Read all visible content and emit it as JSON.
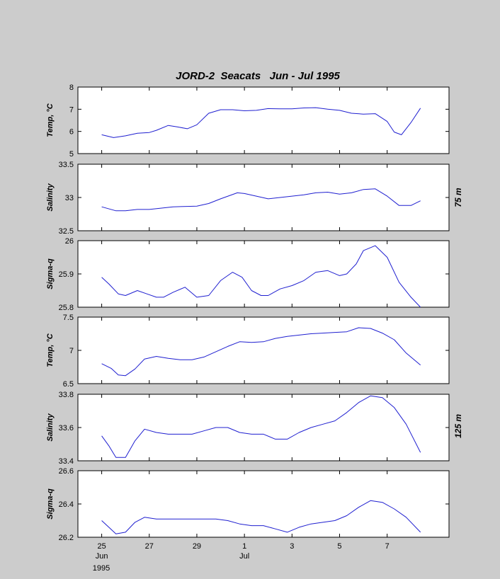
{
  "chart_data": {
    "type": "line",
    "title": "JORD-2  Seacats   Jun - Jul 1995",
    "x_ticks": [
      {
        "x": 25,
        "label": "25",
        "sub": "Jun"
      },
      {
        "x": 27,
        "label": "27",
        "sub": ""
      },
      {
        "x": 29,
        "label": "29",
        "sub": ""
      },
      {
        "x": 31,
        "label": "1",
        "sub": "Jul"
      },
      {
        "x": 33,
        "label": "3",
        "sub": ""
      },
      {
        "x": 35,
        "label": "5",
        "sub": ""
      },
      {
        "x": 37,
        "label": "7",
        "sub": ""
      }
    ],
    "xlim": [
      24,
      39.6
    ],
    "year_label": "1995",
    "depth_labels": [
      "75 m",
      "125 m"
    ],
    "line_color": "#1f1fd0",
    "panels": [
      {
        "ylabel": "Temp, °C",
        "ylim": [
          5,
          8
        ],
        "yticks": [
          "5",
          "6",
          "7",
          "8"
        ],
        "ytick_values": [
          5,
          6,
          7,
          8
        ],
        "x": [
          25.0,
          25.5,
          26.0,
          26.5,
          27.0,
          27.3,
          27.8,
          28.2,
          28.6,
          29.0,
          29.5,
          30.0,
          30.5,
          31.0,
          31.5,
          32.0,
          32.5,
          33.0,
          33.5,
          34.0,
          34.5,
          35.0,
          35.5,
          36.0,
          36.5,
          37.0,
          37.3,
          37.6,
          38.0,
          38.4
        ],
        "y": [
          5.85,
          5.72,
          5.8,
          5.92,
          5.95,
          6.05,
          6.27,
          6.2,
          6.12,
          6.3,
          6.82,
          6.98,
          6.98,
          6.93,
          6.95,
          7.03,
          7.02,
          7.02,
          7.06,
          7.07,
          7.0,
          6.95,
          6.82,
          6.78,
          6.8,
          6.45,
          5.97,
          5.85,
          6.4,
          7.05
        ]
      },
      {
        "ylabel": "Salinity",
        "ylim": [
          32.5,
          33.5
        ],
        "yticks": [
          "32.5",
          "33",
          "33.5"
        ],
        "ytick_values": [
          32.5,
          33,
          33.5
        ],
        "x": [
          25.0,
          25.6,
          26.0,
          26.5,
          27.0,
          28.0,
          29.0,
          29.5,
          30.0,
          30.7,
          31.0,
          31.5,
          32.0,
          32.5,
          33.0,
          33.5,
          34.0,
          34.5,
          35.0,
          35.5,
          36.0,
          36.5,
          37.0,
          37.5,
          38.0,
          38.4
        ],
        "y": [
          32.86,
          32.8,
          32.8,
          32.82,
          32.82,
          32.86,
          32.87,
          32.91,
          32.98,
          33.07,
          33.06,
          33.02,
          32.98,
          33.0,
          33.02,
          33.04,
          33.07,
          33.08,
          33.05,
          33.07,
          33.12,
          33.13,
          33.02,
          32.88,
          32.88,
          32.95
        ]
      },
      {
        "ylabel": "Sigma-q",
        "ylim": [
          25.8,
          26.0
        ],
        "yticks": [
          "25.8",
          "25.9",
          "26"
        ],
        "ytick_values": [
          25.8,
          25.9,
          26.0
        ],
        "x": [
          25.0,
          25.3,
          25.7,
          26.0,
          26.5,
          26.9,
          27.3,
          27.6,
          28.0,
          28.5,
          29.0,
          29.5,
          30.0,
          30.5,
          30.9,
          31.3,
          31.7,
          32.0,
          32.5,
          33.0,
          33.5,
          34.0,
          34.5,
          35.0,
          35.3,
          35.7,
          36.0,
          36.5,
          37.0,
          37.5,
          38.0,
          38.4
        ],
        "y": [
          25.89,
          25.87,
          25.84,
          25.835,
          25.85,
          25.84,
          25.83,
          25.83,
          25.845,
          25.86,
          25.83,
          25.835,
          25.88,
          25.905,
          25.89,
          25.85,
          25.835,
          25.835,
          25.855,
          25.865,
          25.88,
          25.905,
          25.91,
          25.895,
          25.9,
          25.93,
          25.97,
          25.985,
          25.95,
          25.875,
          25.83,
          25.8
        ]
      },
      {
        "ylabel": "Temp, °C",
        "ylim": [
          6.5,
          7.5
        ],
        "yticks": [
          "6.5",
          "7",
          "7.5"
        ],
        "ytick_values": [
          6.5,
          7,
          7.5
        ],
        "x": [
          25.0,
          25.4,
          25.7,
          26.0,
          26.4,
          26.8,
          27.3,
          27.8,
          28.3,
          28.8,
          29.3,
          29.8,
          30.3,
          30.8,
          31.3,
          31.8,
          32.3,
          32.8,
          33.3,
          33.8,
          34.3,
          34.8,
          35.3,
          35.8,
          36.3,
          36.8,
          37.3,
          37.8,
          38.4
        ],
        "y": [
          6.8,
          6.73,
          6.63,
          6.62,
          6.72,
          6.87,
          6.91,
          6.88,
          6.86,
          6.86,
          6.9,
          6.98,
          7.06,
          7.13,
          7.12,
          7.13,
          7.18,
          7.21,
          7.23,
          7.25,
          7.26,
          7.27,
          7.28,
          7.34,
          7.33,
          7.26,
          7.16,
          6.96,
          6.78
        ]
      },
      {
        "ylabel": "Salinity",
        "ylim": [
          33.4,
          33.8
        ],
        "yticks": [
          "33.4",
          "33.6",
          "33.8"
        ],
        "ytick_values": [
          33.4,
          33.6,
          33.8
        ],
        "x": [
          25.0,
          25.3,
          25.6,
          26.0,
          26.4,
          26.8,
          27.3,
          27.8,
          28.3,
          28.8,
          29.3,
          29.8,
          30.3,
          30.8,
          31.3,
          31.8,
          32.3,
          32.8,
          33.3,
          33.8,
          34.3,
          34.8,
          35.3,
          35.8,
          36.3,
          36.8,
          37.3,
          37.8,
          38.4
        ],
        "y": [
          33.55,
          33.49,
          33.42,
          33.42,
          33.52,
          33.59,
          33.57,
          33.56,
          33.56,
          33.56,
          33.58,
          33.6,
          33.6,
          33.57,
          33.56,
          33.56,
          33.53,
          33.53,
          33.57,
          33.6,
          33.62,
          33.64,
          33.69,
          33.75,
          33.79,
          33.78,
          33.72,
          33.62,
          33.45
        ]
      },
      {
        "ylabel": "Sigma-q",
        "ylim": [
          26.2,
          26.6
        ],
        "yticks": [
          "26.2",
          "26.4",
          "26.6"
        ],
        "ytick_values": [
          26.2,
          26.4,
          26.6
        ],
        "x": [
          25.0,
          25.3,
          25.6,
          26.0,
          26.4,
          26.8,
          27.3,
          27.8,
          28.3,
          28.8,
          29.3,
          29.8,
          30.3,
          30.8,
          31.3,
          31.8,
          32.3,
          32.8,
          33.3,
          33.8,
          34.3,
          34.8,
          35.3,
          35.8,
          36.3,
          36.8,
          37.3,
          37.8,
          38.4
        ],
        "y": [
          26.3,
          26.26,
          26.22,
          26.23,
          26.29,
          26.32,
          26.31,
          26.31,
          26.31,
          26.31,
          26.31,
          26.31,
          26.3,
          26.28,
          26.27,
          26.27,
          26.25,
          26.23,
          26.26,
          26.28,
          26.29,
          26.3,
          26.33,
          26.38,
          26.42,
          26.41,
          26.37,
          26.32,
          26.23
        ]
      }
    ]
  }
}
